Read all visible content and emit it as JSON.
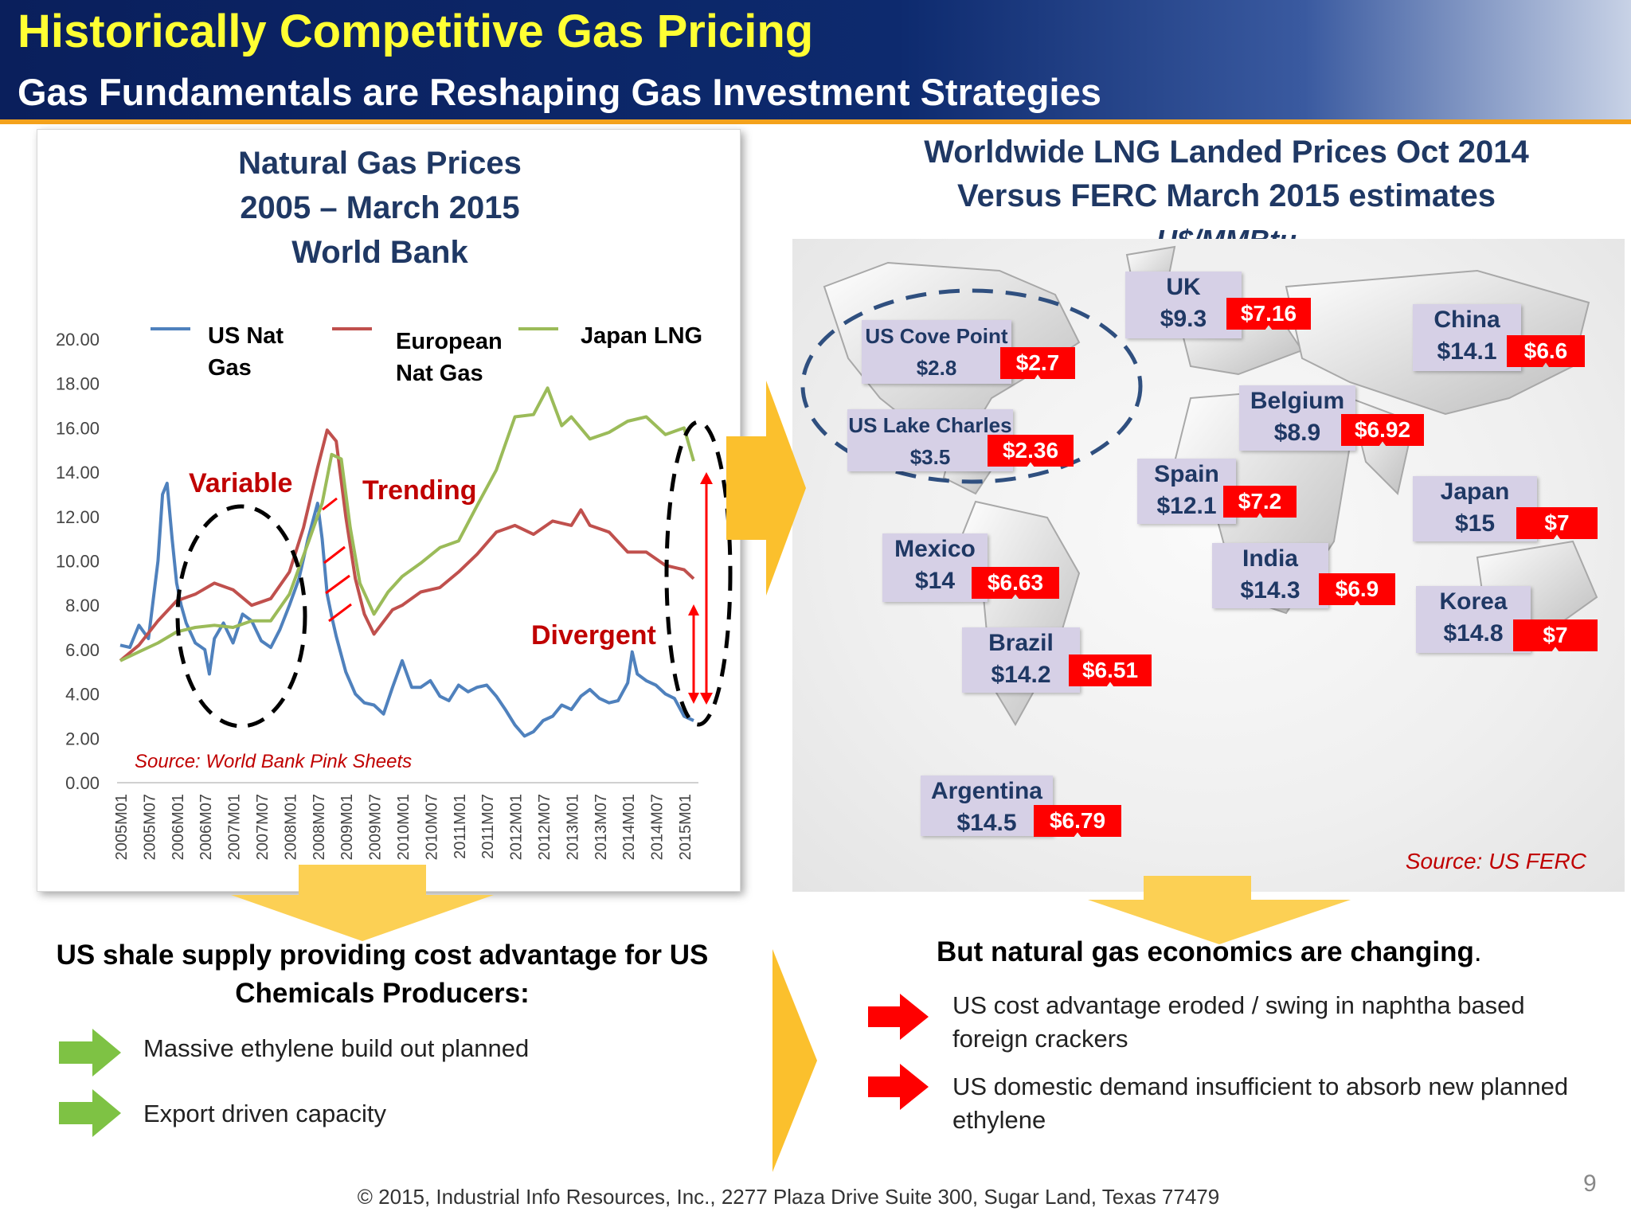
{
  "header": {
    "title": "Historically Competitive Gas Pricing",
    "subtitle": "Gas Fundamentals are Reshaping Gas Investment Strategies"
  },
  "chart_data": {
    "type": "line",
    "title_lines": [
      "Natural Gas Prices",
      "2005 – March 2015",
      "World Bank"
    ],
    "ylim": [
      0,
      20
    ],
    "y_ticks": [
      "0.00",
      "2.00",
      "4.00",
      "6.00",
      "8.00",
      "10.00",
      "12.00",
      "14.00",
      "16.00",
      "18.00",
      "20.00"
    ],
    "x_ticks": [
      "2005M01",
      "2005M07",
      "2006M01",
      "2006M07",
      "2007M01",
      "2007M07",
      "2008M01",
      "2008M07",
      "2009M01",
      "2009M07",
      "2010M01",
      "2010M07",
      "2011M01",
      "2011M07",
      "2012M01",
      "2012M07",
      "2013M01",
      "2013M07",
      "2014M01",
      "2014M07",
      "2015M01"
    ],
    "legend": [
      {
        "name_lines": [
          "US Nat",
          "Gas"
        ],
        "color": "#4f81bd"
      },
      {
        "name_lines": [
          "European",
          "Nat Gas"
        ],
        "color": "#c0504d"
      },
      {
        "name_lines": [
          "Japan LNG"
        ],
        "color": "#9bbb59"
      }
    ],
    "series": [
      {
        "name": "US Nat Gas",
        "color": "#4f81bd",
        "x": [
          2005.0,
          2005.17,
          2005.33,
          2005.5,
          2005.67,
          2005.75,
          2005.83,
          2005.92,
          2006.0,
          2006.08,
          2006.17,
          2006.33,
          2006.5,
          2006.58,
          2006.67,
          2006.83,
          2007.0,
          2007.17,
          2007.33,
          2007.5,
          2007.67,
          2007.83,
          2008.0,
          2008.17,
          2008.33,
          2008.5,
          2008.58,
          2008.67,
          2008.75,
          2008.83,
          2009.0,
          2009.17,
          2009.33,
          2009.5,
          2009.67,
          2009.83,
          2010.0,
          2010.17,
          2010.33,
          2010.5,
          2010.67,
          2010.83,
          2011.0,
          2011.17,
          2011.33,
          2011.5,
          2011.67,
          2011.83,
          2012.0,
          2012.17,
          2012.33,
          2012.5,
          2012.67,
          2012.83,
          2013.0,
          2013.17,
          2013.33,
          2013.5,
          2013.67,
          2013.83,
          2014.0,
          2014.08,
          2014.17,
          2014.33,
          2014.5,
          2014.67,
          2014.83,
          2015.0,
          2015.17
        ],
        "y": [
          6.2,
          6.1,
          7.1,
          6.5,
          10.0,
          13.0,
          13.5,
          11.0,
          9.0,
          8.0,
          7.2,
          6.3,
          6.0,
          4.9,
          6.5,
          7.2,
          6.3,
          7.6,
          7.3,
          6.4,
          6.1,
          6.9,
          8.0,
          9.2,
          11.0,
          12.6,
          11.0,
          8.5,
          7.5,
          6.6,
          5.0,
          4.0,
          3.6,
          3.5,
          3.1,
          4.3,
          5.5,
          4.3,
          4.3,
          4.6,
          3.9,
          3.7,
          4.4,
          4.1,
          4.3,
          4.4,
          3.9,
          3.3,
          2.6,
          2.1,
          2.3,
          2.8,
          3.0,
          3.5,
          3.3,
          3.9,
          4.2,
          3.8,
          3.6,
          3.7,
          4.5,
          5.9,
          4.9,
          4.6,
          4.4,
          4.0,
          3.8,
          3.0,
          2.8
        ]
      },
      {
        "name": "European Nat Gas",
        "color": "#c0504d",
        "x": [
          2005.0,
          2005.33,
          2005.67,
          2006.0,
          2006.33,
          2006.67,
          2007.0,
          2007.33,
          2007.67,
          2008.0,
          2008.25,
          2008.5,
          2008.67,
          2008.83,
          2009.0,
          2009.17,
          2009.33,
          2009.5,
          2009.83,
          2010.0,
          2010.33,
          2010.67,
          2011.0,
          2011.33,
          2011.67,
          2012.0,
          2012.33,
          2012.67,
          2013.0,
          2013.17,
          2013.33,
          2013.67,
          2014.0,
          2014.33,
          2014.67,
          2015.0,
          2015.17
        ],
        "y": [
          5.5,
          6.2,
          7.3,
          8.2,
          8.5,
          9.0,
          8.7,
          8.0,
          8.3,
          9.5,
          11.5,
          14.2,
          15.9,
          15.4,
          12.0,
          9.2,
          7.6,
          6.7,
          7.8,
          8.0,
          8.6,
          8.8,
          9.5,
          10.3,
          11.3,
          11.6,
          11.2,
          11.8,
          11.6,
          12.3,
          11.6,
          11.3,
          10.4,
          10.4,
          9.8,
          9.6,
          9.2
        ]
      },
      {
        "name": "Japan LNG",
        "color": "#9bbb59",
        "x": [
          2005.0,
          2005.33,
          2005.67,
          2006.0,
          2006.33,
          2006.67,
          2007.0,
          2007.33,
          2007.67,
          2008.0,
          2008.33,
          2008.58,
          2008.75,
          2008.92,
          2009.08,
          2009.25,
          2009.5,
          2009.75,
          2010.0,
          2010.33,
          2010.67,
          2011.0,
          2011.33,
          2011.67,
          2012.0,
          2012.33,
          2012.58,
          2012.83,
          2013.0,
          2013.33,
          2013.67,
          2014.0,
          2014.33,
          2014.67,
          2015.0,
          2015.17
        ],
        "y": [
          5.5,
          5.9,
          6.3,
          6.8,
          7.0,
          7.1,
          7.0,
          7.3,
          7.3,
          8.5,
          10.8,
          12.6,
          14.8,
          14.6,
          11.5,
          9.0,
          7.6,
          8.6,
          9.3,
          9.9,
          10.6,
          10.9,
          12.5,
          14.1,
          16.5,
          16.6,
          17.8,
          16.1,
          16.5,
          15.5,
          15.8,
          16.3,
          16.5,
          15.7,
          16.0,
          14.5
        ]
      }
    ],
    "annotations": [
      "Variable",
      "Trending",
      "Divergent"
    ],
    "source": "Source: World Bank Pink Sheets"
  },
  "map": {
    "title_lines": [
      "Worldwide LNG Landed Prices Oct  2014",
      "Versus FERC March 2015 estimates"
    ],
    "unit": "U$/MMBtu",
    "source": "Source: US FERC",
    "countries": [
      {
        "name": "UK",
        "lng_price": "$9.3",
        "ferc_price": "$7.16"
      },
      {
        "name": "US Cove Point",
        "lng_price": "$2.8",
        "ferc_price": "$2.7"
      },
      {
        "name": "US Lake Charles",
        "lng_price": "$3.5",
        "ferc_price": "$2.36"
      },
      {
        "name": "China",
        "lng_price": "$14.1",
        "ferc_price": "$6.6"
      },
      {
        "name": "Belgium",
        "lng_price": "$8.9",
        "ferc_price": "$6.92"
      },
      {
        "name": "Spain",
        "lng_price": "$12.1",
        "ferc_price": "$7.2"
      },
      {
        "name": "Japan",
        "lng_price": "$15",
        "ferc_price": "$7"
      },
      {
        "name": "Mexico",
        "lng_price": "$14",
        "ferc_price": "$6.63"
      },
      {
        "name": "India",
        "lng_price": "$14.3",
        "ferc_price": "$6.9"
      },
      {
        "name": "Korea",
        "lng_price": "$14.8",
        "ferc_price": "$7"
      },
      {
        "name": "Brazil",
        "lng_price": "$14.2",
        "ferc_price": "$6.51"
      },
      {
        "name": "Argentina",
        "lng_price": "$14.5",
        "ferc_price": "$6.79"
      }
    ]
  },
  "bottom_left": {
    "heading": "US shale supply providing cost advantage for US Chemicals Producers:",
    "bullets": [
      "Massive ethylene build out planned",
      "Export driven capacity"
    ]
  },
  "bottom_right": {
    "heading_bold": "But natural gas economics are changing",
    "heading_tail": ".",
    "bullets": [
      [
        "US cost advantage eroded / swing in naphtha based",
        "foreign crackers"
      ],
      [
        "US domestic demand insufficient to absorb new planned",
        "ethylene"
      ]
    ]
  },
  "footer": "© 2015, Industrial Info Resources, Inc.,  2277 Plaza Drive Suite 300, Sugar Land, Texas 77479",
  "page_number": "9",
  "colors": {
    "header_bg": "#0d2a6e",
    "title": "#ffff33",
    "accent_stripe": "#f4a21c",
    "heading_blue": "#1f3864",
    "tag_red": "#ff0000",
    "label_bg": "#d6d0e6",
    "arrow_yellow": "#fbc02d",
    "bullet_green": "#7ec244"
  }
}
